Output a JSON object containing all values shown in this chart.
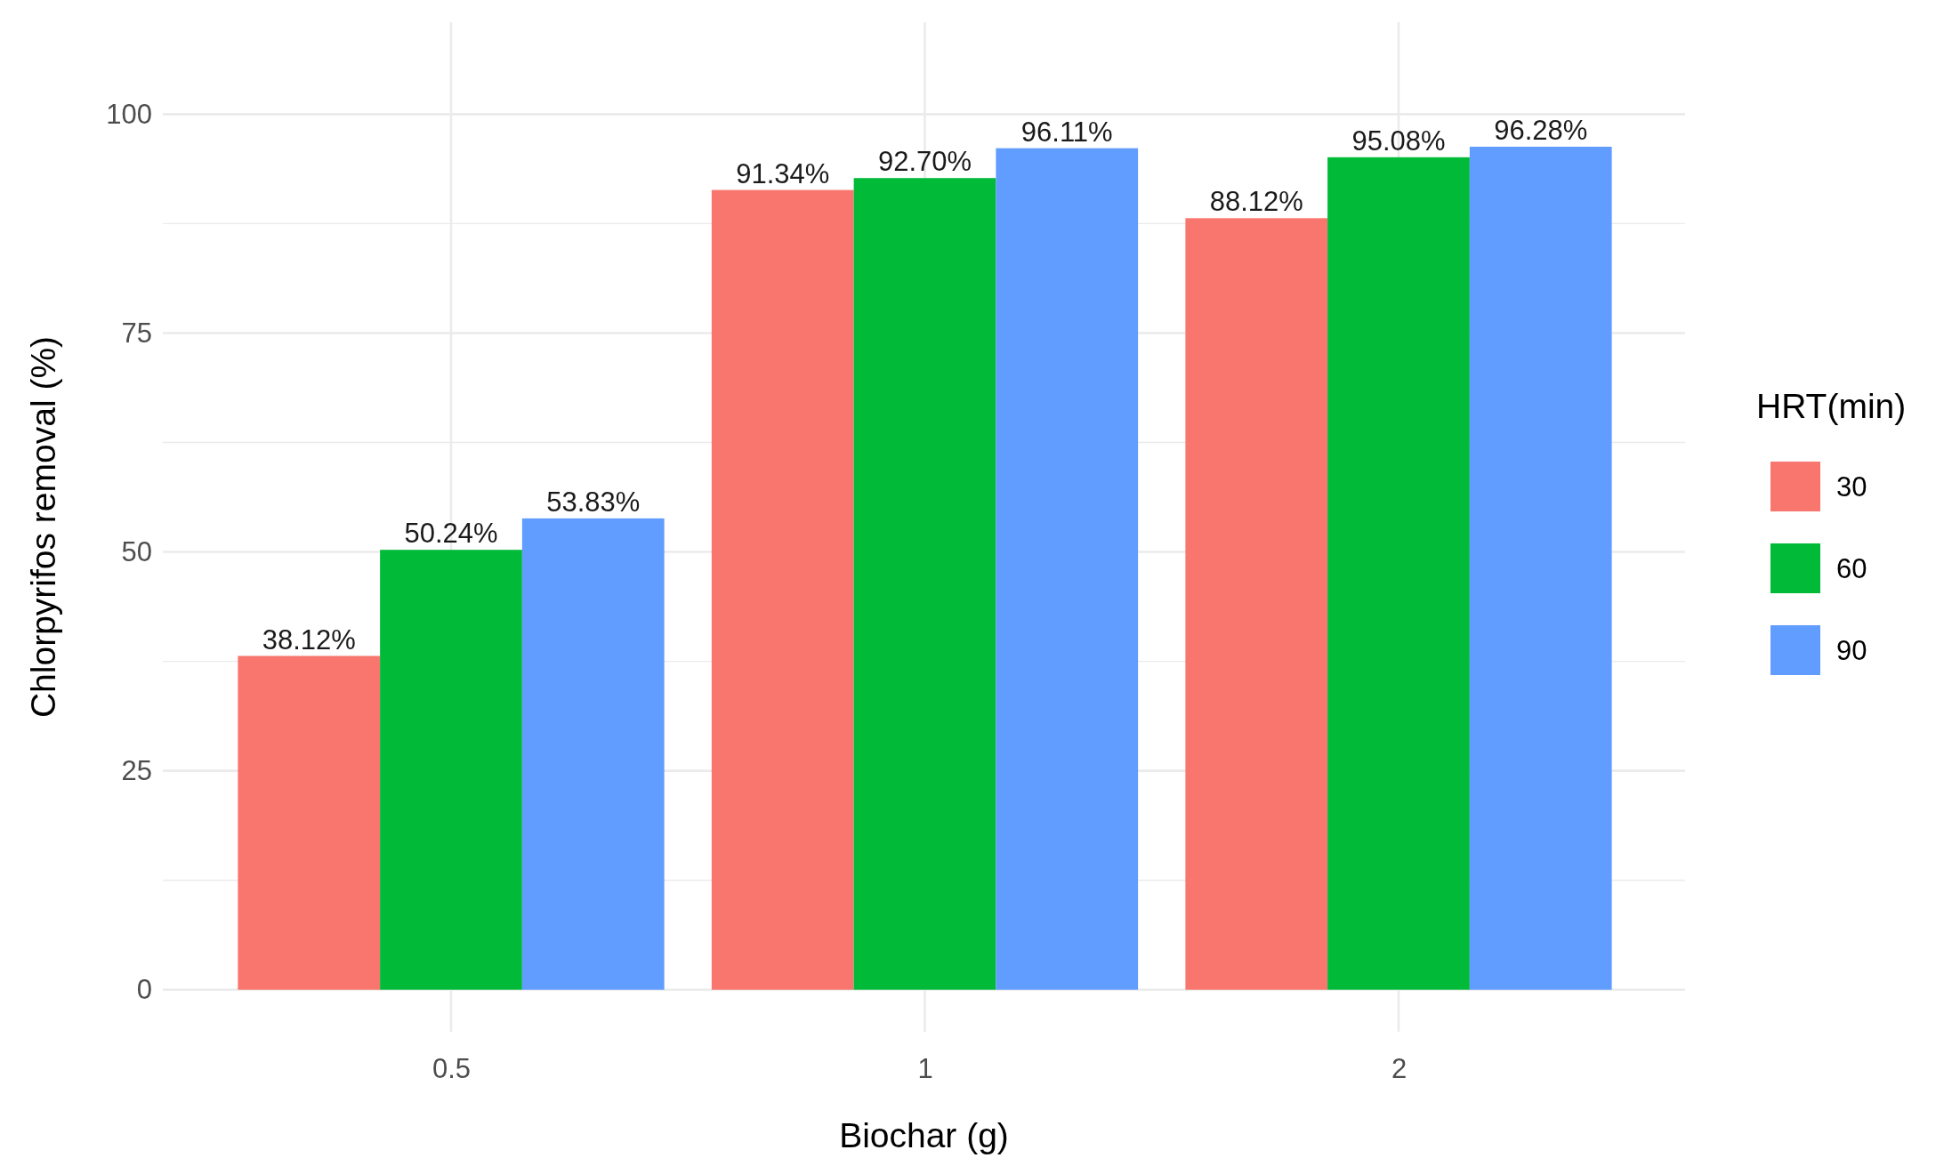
{
  "chart_data": {
    "type": "bar",
    "xlabel": "Biochar (g)",
    "ylabel": "Chlorpyrifos removal (%)",
    "legend_title": "HRT(min)",
    "categories": [
      "0.5",
      "1",
      "2"
    ],
    "series": [
      {
        "name": "30",
        "color": "#f8766d",
        "values": [
          38.12,
          91.34,
          88.12
        ],
        "value_labels": [
          "38.12%",
          "91.34%",
          "88.12%"
        ]
      },
      {
        "name": "60",
        "color": "#00ba38",
        "values": [
          50.24,
          92.7,
          95.08
        ],
        "value_labels": [
          "50.24%",
          "92.70%",
          "95.08%"
        ]
      },
      {
        "name": "90",
        "color": "#619cff",
        "values": [
          53.83,
          96.11,
          96.28
        ],
        "value_labels": [
          "53.83%",
          "96.11%",
          "96.28%"
        ]
      }
    ],
    "ylim": [
      -4.8,
      110.5
    ],
    "yticks": [
      0,
      25,
      50,
      75,
      100
    ],
    "grid": true,
    "legend": "right"
  }
}
